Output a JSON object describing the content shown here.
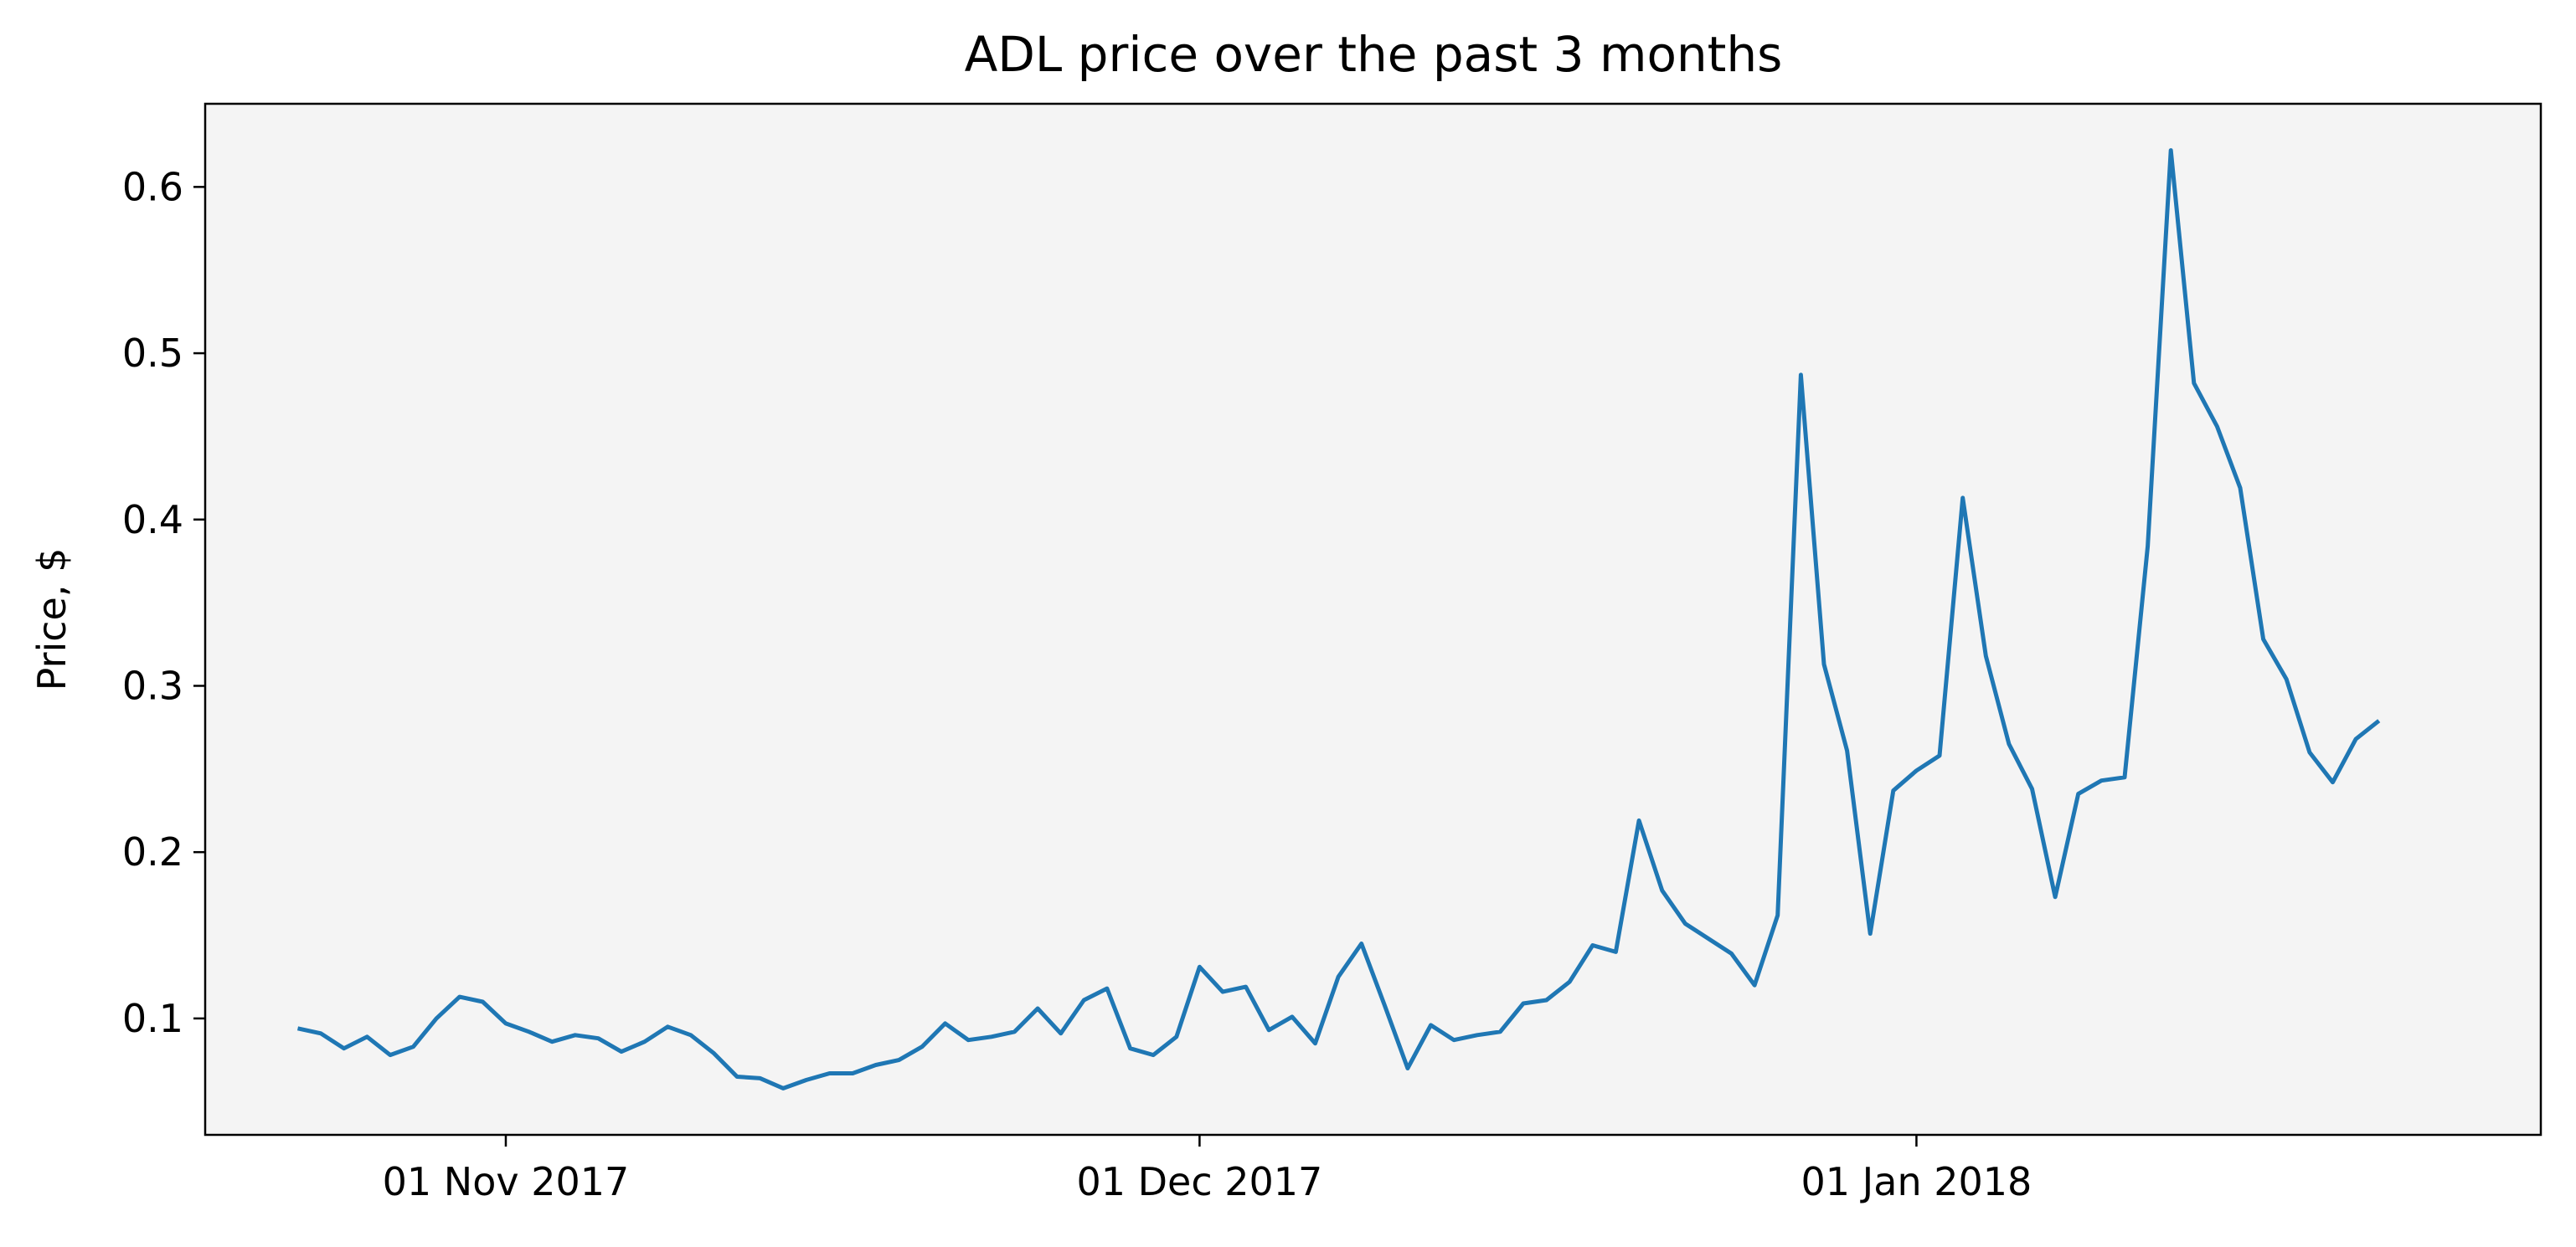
{
  "chart_data": {
    "type": "line",
    "title": "ADL price over the past 3 months",
    "xlabel": "",
    "ylabel": "Price, $",
    "x_ticks": [
      {
        "date": "2017-11-01",
        "label": "01 Nov 2017"
      },
      {
        "date": "2017-12-01",
        "label": "01 Dec 2017"
      },
      {
        "date": "2018-01-01",
        "label": "01 Jan 2018"
      }
    ],
    "y_ticks": [
      0.1,
      0.2,
      0.3,
      0.4,
      0.5,
      0.6
    ],
    "xlim": [
      "2017-10-19",
      "2018-01-28"
    ],
    "ylim": [
      0.03,
      0.65
    ],
    "grid": false,
    "background_color": "#f4f4f4",
    "series": [
      {
        "color": "#1f77b4",
        "points": [
          [
            "2017-10-23",
            0.094
          ],
          [
            "2017-10-24",
            0.091
          ],
          [
            "2017-10-25",
            0.082
          ],
          [
            "2017-10-26",
            0.089
          ],
          [
            "2017-10-27",
            0.078
          ],
          [
            "2017-10-28",
            0.083
          ],
          [
            "2017-10-29",
            0.1
          ],
          [
            "2017-10-30",
            0.113
          ],
          [
            "2017-10-31",
            0.11
          ],
          [
            "2017-11-01",
            0.097
          ],
          [
            "2017-11-02",
            0.092
          ],
          [
            "2017-11-03",
            0.086
          ],
          [
            "2017-11-04",
            0.09
          ],
          [
            "2017-11-05",
            0.088
          ],
          [
            "2017-11-06",
            0.08
          ],
          [
            "2017-11-07",
            0.086
          ],
          [
            "2017-11-08",
            0.095
          ],
          [
            "2017-11-09",
            0.09
          ],
          [
            "2017-11-10",
            0.079
          ],
          [
            "2017-11-11",
            0.065
          ],
          [
            "2017-11-12",
            0.064
          ],
          [
            "2017-11-13",
            0.058
          ],
          [
            "2017-11-14",
            0.063
          ],
          [
            "2017-11-15",
            0.067
          ],
          [
            "2017-11-16",
            0.067
          ],
          [
            "2017-11-17",
            0.072
          ],
          [
            "2017-11-18",
            0.075
          ],
          [
            "2017-11-19",
            0.083
          ],
          [
            "2017-11-20",
            0.097
          ],
          [
            "2017-11-21",
            0.087
          ],
          [
            "2017-11-22",
            0.089
          ],
          [
            "2017-11-23",
            0.092
          ],
          [
            "2017-11-24",
            0.106
          ],
          [
            "2017-11-25",
            0.091
          ],
          [
            "2017-11-26",
            0.111
          ],
          [
            "2017-11-27",
            0.118
          ],
          [
            "2017-11-28",
            0.082
          ],
          [
            "2017-11-29",
            0.078
          ],
          [
            "2017-11-30",
            0.089
          ],
          [
            "2017-12-01",
            0.131
          ],
          [
            "2017-12-02",
            0.116
          ],
          [
            "2017-12-03",
            0.119
          ],
          [
            "2017-12-04",
            0.093
          ],
          [
            "2017-12-05",
            0.101
          ],
          [
            "2017-12-06",
            0.085
          ],
          [
            "2017-12-07",
            0.125
          ],
          [
            "2017-12-08",
            0.145
          ],
          [
            "2017-12-09",
            0.108
          ],
          [
            "2017-12-10",
            0.07
          ],
          [
            "2017-12-11",
            0.096
          ],
          [
            "2017-12-12",
            0.087
          ],
          [
            "2017-12-13",
            0.09
          ],
          [
            "2017-12-14",
            0.092
          ],
          [
            "2017-12-15",
            0.109
          ],
          [
            "2017-12-16",
            0.111
          ],
          [
            "2017-12-17",
            0.122
          ],
          [
            "2017-12-18",
            0.144
          ],
          [
            "2017-12-19",
            0.14
          ],
          [
            "2017-12-20",
            0.219
          ],
          [
            "2017-12-21",
            0.177
          ],
          [
            "2017-12-22",
            0.157
          ],
          [
            "2017-12-23",
            0.148
          ],
          [
            "2017-12-24",
            0.139
          ],
          [
            "2017-12-25",
            0.12
          ],
          [
            "2017-12-26",
            0.162
          ],
          [
            "2017-12-27",
            0.487
          ],
          [
            "2017-12-28",
            0.313
          ],
          [
            "2017-12-29",
            0.261
          ],
          [
            "2017-12-30",
            0.151
          ],
          [
            "2017-12-31",
            0.237
          ],
          [
            "2018-01-01",
            0.249
          ],
          [
            "2018-01-02",
            0.258
          ],
          [
            "2018-01-03",
            0.413
          ],
          [
            "2018-01-04",
            0.318
          ],
          [
            "2018-01-05",
            0.265
          ],
          [
            "2018-01-06",
            0.238
          ],
          [
            "2018-01-07",
            0.173
          ],
          [
            "2018-01-08",
            0.235
          ],
          [
            "2018-01-09",
            0.243
          ],
          [
            "2018-01-10",
            0.245
          ],
          [
            "2018-01-11",
            0.384
          ],
          [
            "2018-01-12",
            0.622
          ],
          [
            "2018-01-13",
            0.482
          ],
          [
            "2018-01-14",
            0.456
          ],
          [
            "2018-01-15",
            0.419
          ],
          [
            "2018-01-16",
            0.328
          ],
          [
            "2018-01-17",
            0.304
          ],
          [
            "2018-01-18",
            0.26
          ],
          [
            "2018-01-19",
            0.242
          ],
          [
            "2018-01-20",
            0.268
          ],
          [
            "2018-01-21",
            0.279
          ]
        ]
      }
    ]
  }
}
